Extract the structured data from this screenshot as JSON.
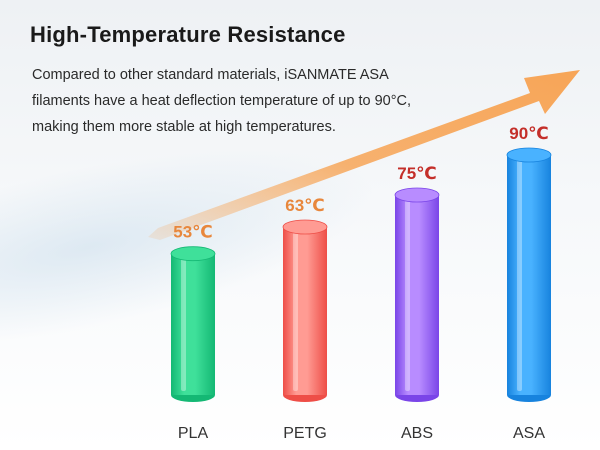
{
  "header": {
    "title": "High-Temperature Resistance",
    "description": "Compared to other standard materials, iSANMATE ASA filaments have a heat deflection temperature of up to 90°C, making them more stable at high temperatures."
  },
  "colors": {
    "arrow": "#f7a557",
    "label_orange": "#e8873c",
    "label_red": "#c42f2a"
  },
  "chart_data": {
    "type": "bar",
    "title": "",
    "xlabel": "",
    "ylabel": "",
    "categories": [
      "PLA",
      "PETG",
      "ABS",
      "ASA"
    ],
    "values": [
      53,
      63,
      75,
      90
    ],
    "value_labels": [
      "53℃",
      "63℃",
      "75℃",
      "90℃"
    ],
    "unit": "℃",
    "label_colors": [
      "#e8873c",
      "#e8873c",
      "#c42f2a",
      "#c42f2a"
    ],
    "bar_colors": [
      [
        "#3fe09a",
        "#14b874"
      ],
      [
        "#ff9b93",
        "#ee4e47"
      ],
      [
        "#b88cff",
        "#7a45e8"
      ],
      [
        "#49b2ff",
        "#1783de"
      ]
    ],
    "ylim": [
      0,
      100
    ],
    "grid": false,
    "trend_arrow": true
  }
}
